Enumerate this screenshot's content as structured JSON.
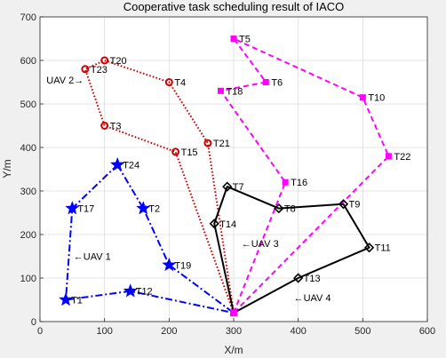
{
  "chart_data": {
    "type": "line",
    "title": "Cooperative task scheduling result of IACO",
    "xlabel": "X/m",
    "ylabel": "Y/m",
    "xlim": [
      0,
      600
    ],
    "ylim": [
      0,
      700
    ],
    "xticks": [
      "0",
      "100",
      "200",
      "300",
      "400",
      "500",
      "600"
    ],
    "yticks": [
      "0",
      "100",
      "200",
      "300",
      "400",
      "500",
      "600",
      "700"
    ],
    "grid": true,
    "depot": {
      "x": 300,
      "y": 20
    },
    "series": [
      {
        "name": "UAV 1",
        "color": "#0000ff",
        "line_style": "dash-dot",
        "marker": "star",
        "route": [
          "T24",
          "T2",
          "T19",
          "Depot",
          "T12",
          "T1",
          "T17",
          "T24"
        ],
        "x": [
          120,
          160,
          200,
          300,
          140,
          40,
          50,
          120
        ],
        "y": [
          360,
          260,
          130,
          20,
          70,
          50,
          260,
          360
        ]
      },
      {
        "name": "UAV 2",
        "color": "#cc0000",
        "line_style": "dotted",
        "marker": "circle",
        "route": [
          "Depot",
          "T21",
          "T4",
          "T20",
          "T23",
          "T3",
          "T15",
          "Depot"
        ],
        "x": [
          300,
          260,
          200,
          100,
          70,
          100,
          210,
          300
        ],
        "y": [
          20,
          410,
          550,
          600,
          580,
          450,
          390,
          20
        ]
      },
      {
        "name": "UAV 3",
        "color": "#ff00ff",
        "line_style": "dashed",
        "marker": "square",
        "route": [
          "Depot",
          "T16",
          "T18",
          "T6",
          "T5",
          "T10",
          "T22",
          "Depot"
        ],
        "x": [
          300,
          380,
          280,
          350,
          300,
          500,
          540,
          300
        ],
        "y": [
          20,
          320,
          530,
          550,
          650,
          515,
          380,
          20
        ]
      },
      {
        "name": "UAV 4",
        "color": "#000000",
        "line_style": "solid",
        "marker": "diamond",
        "route": [
          "Depot",
          "T14",
          "T7",
          "T8",
          "T9",
          "T11",
          "T13",
          "Depot"
        ],
        "x": [
          300,
          270,
          290,
          370,
          470,
          510,
          400,
          300
        ],
        "y": [
          20,
          225,
          310,
          260,
          270,
          170,
          100,
          20
        ]
      }
    ],
    "task_labels": [
      {
        "label": "T1",
        "x": 40,
        "y": 50
      },
      {
        "label": "T2",
        "x": 160,
        "y": 260
      },
      {
        "label": "T3",
        "x": 100,
        "y": 450
      },
      {
        "label": "T4",
        "x": 200,
        "y": 550
      },
      {
        "label": "T5",
        "x": 300,
        "y": 650
      },
      {
        "label": "T6",
        "x": 350,
        "y": 550
      },
      {
        "label": "T7",
        "x": 290,
        "y": 310
      },
      {
        "label": "T8",
        "x": 370,
        "y": 260
      },
      {
        "label": "T9",
        "x": 470,
        "y": 270
      },
      {
        "label": "T10",
        "x": 500,
        "y": 515
      },
      {
        "label": "T11",
        "x": 510,
        "y": 170
      },
      {
        "label": "T12",
        "x": 140,
        "y": 70
      },
      {
        "label": "T13",
        "x": 400,
        "y": 100
      },
      {
        "label": "T14",
        "x": 270,
        "y": 225
      },
      {
        "label": "T15",
        "x": 210,
        "y": 390
      },
      {
        "label": "T16",
        "x": 380,
        "y": 320
      },
      {
        "label": "T17",
        "x": 50,
        "y": 260
      },
      {
        "label": "T18",
        "x": 280,
        "y": 530
      },
      {
        "label": "T19",
        "x": 200,
        "y": 130
      },
      {
        "label": "T20",
        "x": 100,
        "y": 600
      },
      {
        "label": "T21",
        "x": 260,
        "y": 410
      },
      {
        "label": "T22",
        "x": 540,
        "y": 380
      },
      {
        "label": "T23",
        "x": 70,
        "y": 580
      },
      {
        "label": "T24",
        "x": 120,
        "y": 360
      }
    ],
    "annotations": [
      {
        "text": "←UAV 1",
        "x": 52,
        "y": 150
      },
      {
        "text": "UAV 2→",
        "x": 10,
        "y": 555
      },
      {
        "text": "←UAV 3",
        "x": 312,
        "y": 180
      },
      {
        "text": "←UAV 4",
        "x": 393,
        "y": 55
      }
    ]
  }
}
